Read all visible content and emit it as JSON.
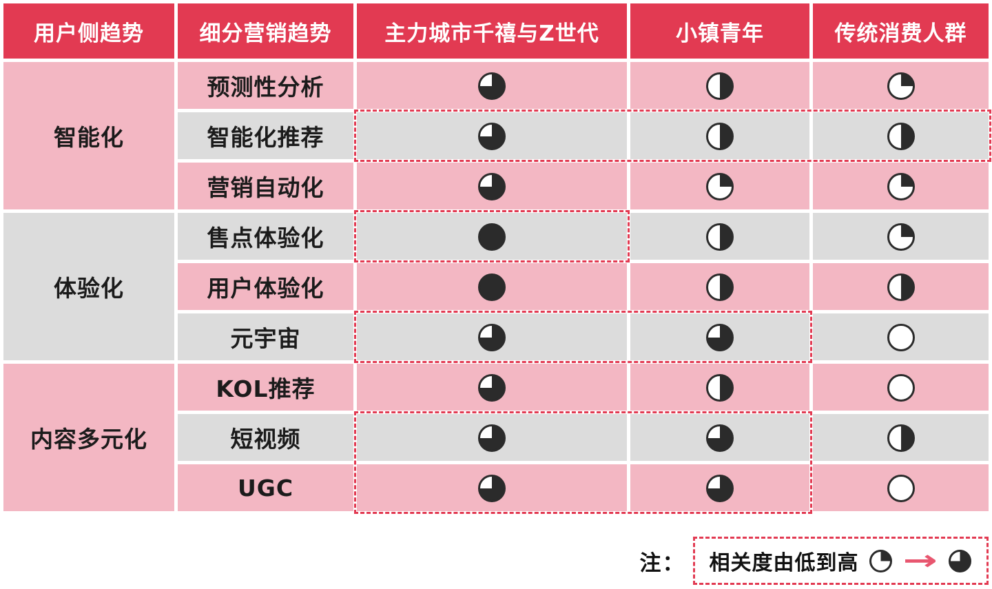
{
  "palette": {
    "header_red": "#E23A52",
    "row_pink": "#F3B7C3",
    "row_gray": "#DCDCDC",
    "ball_dark": "#2B2B2B",
    "ball_empty": "#FFFFFF",
    "highlight_dashed_red": "#E23A52",
    "arrow_pink": "#E8566F",
    "header_text": "#FFFFFF",
    "body_text": "#1B1B1B"
  },
  "table": {
    "columns": [
      "用户侧趋势",
      "细分营销趋势",
      "主力城市千禧与Z世代",
      "小镇青年",
      "传统消费人群"
    ],
    "groups": [
      {
        "label": "智能化",
        "rows": [
          {
            "label": "预测性分析",
            "values": [
              75,
              50,
              25
            ]
          },
          {
            "label": "智能化推荐",
            "values": [
              75,
              50,
              50
            ]
          },
          {
            "label": "营销自动化",
            "values": [
              75,
              25,
              25
            ]
          }
        ]
      },
      {
        "label": "体验化",
        "rows": [
          {
            "label": "售点体验化",
            "values": [
              100,
              50,
              25
            ]
          },
          {
            "label": "用户体验化",
            "values": [
              100,
              50,
              50
            ]
          },
          {
            "label": "元宇宙",
            "values": [
              75,
              75,
              0
            ]
          }
        ]
      },
      {
        "label": "内容多元化",
        "rows": [
          {
            "label": "KOL推荐",
            "values": [
              75,
              50,
              0
            ]
          },
          {
            "label": "短视频",
            "values": [
              75,
              75,
              50
            ]
          },
          {
            "label": "UGC",
            "values": [
              75,
              75,
              0
            ]
          }
        ]
      }
    ],
    "highlights": [
      {
        "row_start": 1,
        "row_end": 1,
        "col_start": 2,
        "col_end": 4
      },
      {
        "row_start": 3,
        "row_end": 3,
        "col_start": 2,
        "col_end": 2
      },
      {
        "row_start": 5,
        "row_end": 5,
        "col_start": 2,
        "col_end": 3
      },
      {
        "row_start": 7,
        "row_end": 8,
        "col_start": 2,
        "col_end": 3
      }
    ]
  },
  "legend": {
    "prefix": "注：",
    "text": "相关度由低到高",
    "low_ball_percent": 25,
    "high_ball_percent": 75,
    "arrow": "→"
  },
  "chart_data": {
    "type": "table",
    "title": "用户侧趋势 × 细分营销趋势 相关度矩阵 (Harvey balls)",
    "value_unit": "相关度百分比(0=无, 25=低, 50=中, 75=高, 100=最高)",
    "columns": [
      "用户侧趋势",
      "细分营销趋势",
      "主力城市千禧与Z世代",
      "小镇青年",
      "传统消费人群"
    ],
    "rows": [
      {
        "group": "智能化",
        "item": "预测性分析",
        "values": [
          75,
          50,
          25
        ]
      },
      {
        "group": "智能化",
        "item": "智能化推荐",
        "values": [
          75,
          50,
          50
        ]
      },
      {
        "group": "智能化",
        "item": "营销自动化",
        "values": [
          75,
          25,
          25
        ]
      },
      {
        "group": "体验化",
        "item": "售点体验化",
        "values": [
          100,
          50,
          25
        ]
      },
      {
        "group": "体验化",
        "item": "用户体验化",
        "values": [
          100,
          50,
          50
        ]
      },
      {
        "group": "体验化",
        "item": "元宇宙",
        "values": [
          75,
          75,
          0
        ]
      },
      {
        "group": "内容多元化",
        "item": "KOL推荐",
        "values": [
          75,
          50,
          0
        ]
      },
      {
        "group": "内容多元化",
        "item": "短视频",
        "values": [
          75,
          75,
          50
        ]
      },
      {
        "group": "内容多元化",
        "item": "UGC",
        "values": [
          75,
          75,
          0
        ]
      }
    ],
    "legend": "注：相关度由低到高 (25% → 75%)",
    "highlighted_cells": "智能化推荐全行；售点体验化-主力城市；元宇宙-主力城市/小镇青年；短视频与UGC-主力城市/小镇青年"
  }
}
